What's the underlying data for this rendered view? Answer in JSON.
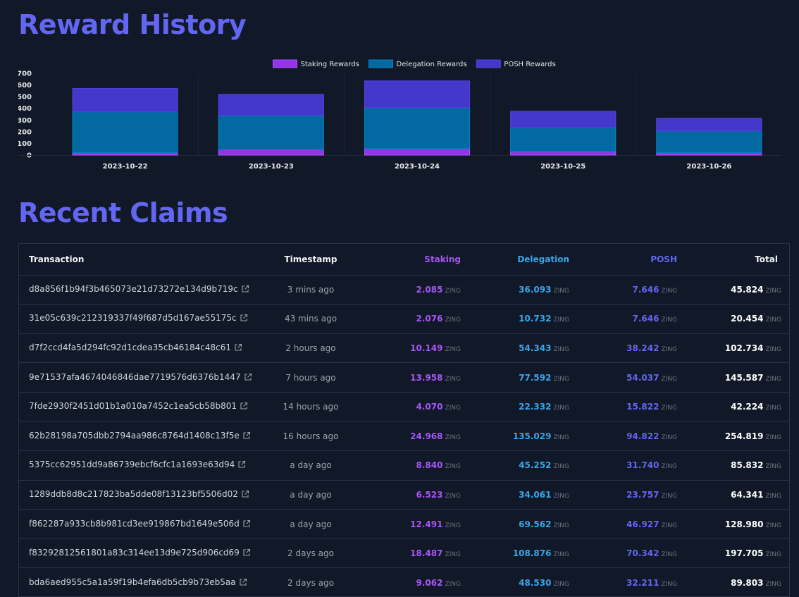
{
  "reward_history": {
    "title": "Reward History"
  },
  "recent_claims": {
    "title": "Recent Claims"
  },
  "colors": {
    "staking": "#9333ea",
    "delegation": "#0369a1",
    "posh": "#4338ca",
    "title": "#6366f1"
  },
  "chart_data": {
    "type": "bar",
    "stacked": true,
    "categories": [
      "2023-10-22",
      "2023-10-23",
      "2023-10-24",
      "2023-10-25",
      "2023-10-26"
    ],
    "series": [
      {
        "name": "Staking Rewards",
        "values": [
          20,
          45,
          55,
          30,
          20
        ]
      },
      {
        "name": "Delegation Rewards",
        "values": [
          350,
          295,
          350,
          205,
          185
        ]
      },
      {
        "name": "POSH Rewards",
        "values": [
          200,
          180,
          230,
          140,
          110
        ]
      }
    ],
    "yticks": [
      0,
      100,
      200,
      300,
      400,
      500,
      600,
      700
    ],
    "ylim": [
      0,
      700
    ],
    "legend_position": "top-center",
    "title": "",
    "xlabel": "",
    "ylabel": ""
  },
  "table": {
    "headers": {
      "transaction": "Transaction",
      "timestamp": "Timestamp",
      "staking": "Staking",
      "delegation": "Delegation",
      "posh": "POSH",
      "total": "Total"
    },
    "unit": "ZING",
    "rows": [
      {
        "tx": "d8a856f1b94f3b465073e21d73272e134d9b719c",
        "time": "3 mins ago",
        "staking": "2.085",
        "delegation": "36.093",
        "posh": "7.646",
        "total": "45.824"
      },
      {
        "tx": "31e05c639c212319337f49f687d5d167ae55175c",
        "time": "43 mins ago",
        "staking": "2.076",
        "delegation": "10.732",
        "posh": "7.646",
        "total": "20.454"
      },
      {
        "tx": "d7f2ccd4fa5d294fc92d1cdea35cb46184c48c61",
        "time": "2 hours ago",
        "staking": "10.149",
        "delegation": "54.343",
        "posh": "38.242",
        "total": "102.734"
      },
      {
        "tx": "9e71537afa4674046846dae7719576d6376b1447",
        "time": "7 hours ago",
        "staking": "13.958",
        "delegation": "77.592",
        "posh": "54.037",
        "total": "145.587"
      },
      {
        "tx": "7fde2930f2451d01b1a010a7452c1ea5cb58b801",
        "time": "14 hours ago",
        "staking": "4.070",
        "delegation": "22.332",
        "posh": "15.822",
        "total": "42.224"
      },
      {
        "tx": "62b28198a705dbb2794aa986c8764d1408c13f5e",
        "time": "16 hours ago",
        "staking": "24.968",
        "delegation": "135.029",
        "posh": "94.822",
        "total": "254.819"
      },
      {
        "tx": "5375cc62951dd9a86739ebcf6cfc1a1693e63d94",
        "time": "a day ago",
        "staking": "8.840",
        "delegation": "45.252",
        "posh": "31.740",
        "total": "85.832"
      },
      {
        "tx": "1289ddb8d8c217823ba5dde08f13123bf5506d02",
        "time": "a day ago",
        "staking": "6.523",
        "delegation": "34.061",
        "posh": "23.757",
        "total": "64.341"
      },
      {
        "tx": "f862287a933cb8b981cd3ee919867bd1649e506d",
        "time": "a day ago",
        "staking": "12.491",
        "delegation": "69.562",
        "posh": "46.927",
        "total": "128.980"
      },
      {
        "tx": "f83292812561801a83c314ee13d9e725d906cd69",
        "time": "2 days ago",
        "staking": "18.487",
        "delegation": "108.876",
        "posh": "70.342",
        "total": "197.705"
      },
      {
        "tx": "bda6aed955c5a1a59f19b4efa6db5cb9b73eb5aa",
        "time": "2 days ago",
        "staking": "9.062",
        "delegation": "48.530",
        "posh": "32.211",
        "total": "89.803"
      }
    ]
  }
}
